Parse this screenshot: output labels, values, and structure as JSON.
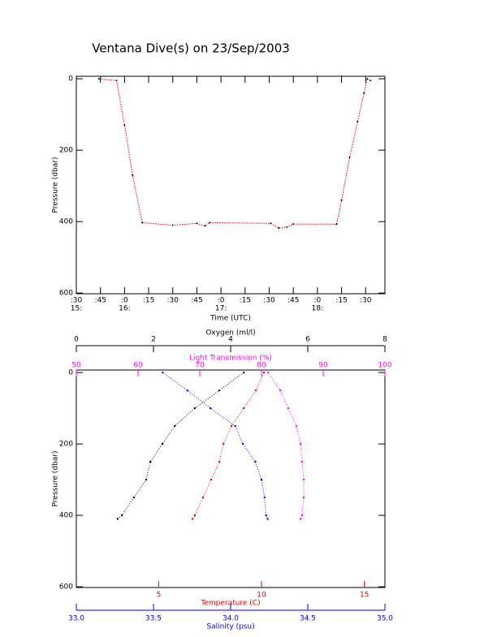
{
  "chart_data": [
    {
      "type": "line",
      "title": "Ventana Dive(s) on 23/Sep/2003",
      "x_label": "Time (UTC)",
      "y_label": "Pressure (dbar)",
      "x": [
        944,
        955,
        960,
        965,
        971,
        990,
        1005,
        1010,
        1013,
        1051,
        1056,
        1061,
        1065,
        1092,
        1095,
        1100,
        1105,
        1109,
        1111,
        1113
      ],
      "values": [
        0,
        5,
        130,
        270,
        403,
        410,
        405,
        412,
        403,
        405,
        418,
        415,
        407,
        407,
        340,
        220,
        120,
        40,
        0,
        5
      ],
      "color": "#e00000",
      "marker_color": "#000000",
      "xlim": [
        930,
        1122
      ],
      "xticks": [
        {
          "value": 930,
          "label": ":30"
        },
        {
          "value": 945,
          "label": ":45"
        },
        {
          "value": 960,
          "label": ":0"
        },
        {
          "value": 975,
          "label": ":15"
        },
        {
          "value": 990,
          "label": ":30"
        },
        {
          "value": 1005,
          "label": ":45"
        },
        {
          "value": 1020,
          "label": ":0"
        },
        {
          "value": 1035,
          "label": ":15"
        },
        {
          "value": 1050,
          "label": ":30"
        },
        {
          "value": 1065,
          "label": ":45"
        },
        {
          "value": 1080,
          "label": ":0"
        },
        {
          "value": 1095,
          "label": ":15"
        },
        {
          "value": 1110,
          "label": ":30"
        }
      ],
      "xticks_hours": [
        {
          "value": 930,
          "label": "15:"
        },
        {
          "value": 960,
          "label": "16:"
        },
        {
          "value": 1020,
          "label": "17:"
        },
        {
          "value": 1080,
          "label": "18:"
        }
      ],
      "ylim": [
        -7,
        602
      ],
      "yticks": [
        0,
        200,
        400,
        600
      ],
      "y_inverted": true
    },
    {
      "type": "profile",
      "y_label": "Pressure (dbar)",
      "ylim": [
        -7,
        602
      ],
      "yticks": [
        0,
        200,
        400,
        600
      ],
      "y_inverted": true,
      "pressure": [
        0,
        50,
        100,
        150,
        200,
        250,
        300,
        350,
        400,
        410
      ],
      "x_axes": [
        {
          "label": "Oxygen (ml/l)",
          "position": "top-outer",
          "color": "#000000",
          "xlim": [
            0,
            8
          ],
          "xticks": [
            0,
            2,
            4,
            6,
            8
          ]
        },
        {
          "label": "Light Transmission (%)",
          "position": "top",
          "color": "#ff00ff",
          "xlim": [
            50,
            100
          ],
          "xticks": [
            50,
            60,
            70,
            80,
            90,
            100
          ]
        },
        {
          "label": "Temperature (C)",
          "position": "bottom",
          "color": "#e00000",
          "xlim": [
            1,
            16
          ],
          "xticks": [
            5,
            10,
            15
          ]
        },
        {
          "label": "Salinity (psu)",
          "position": "bottom-outer",
          "color": "#0000ff",
          "xlim": [
            33,
            35
          ],
          "xticks": [
            {
              "value": 33,
              "label": "33.0"
            },
            {
              "value": 33.5,
              "label": "33.5"
            },
            {
              "value": 34,
              "label": "34.0"
            },
            {
              "value": 34.5,
              "label": "34.5"
            },
            {
              "value": 35,
              "label": "35.0"
            }
          ]
        }
      ],
      "series": [
        {
          "axis": 0,
          "color": "#000000",
          "values": [
            4.34,
            3.71,
            3.07,
            2.55,
            2.23,
            1.92,
            1.81,
            1.49,
            1.18,
            1.07
          ]
        },
        {
          "axis": 1,
          "color": "#ff00ff",
          "values": [
            81.05,
            83.03,
            84.34,
            85.66,
            86.32,
            86.58,
            86.84,
            86.84,
            86.58,
            86.32
          ]
        },
        {
          "axis": 2,
          "color": "#e00000",
          "values": [
            10.12,
            9.73,
            9.13,
            8.54,
            8.15,
            7.95,
            7.55,
            7.16,
            6.76,
            6.65
          ]
        },
        {
          "axis": 3,
          "color": "#0000ff",
          "values": [
            33.56,
            33.72,
            33.87,
            34.03,
            34.08,
            34.16,
            34.2,
            34.22,
            34.23,
            34.24
          ]
        }
      ]
    }
  ]
}
